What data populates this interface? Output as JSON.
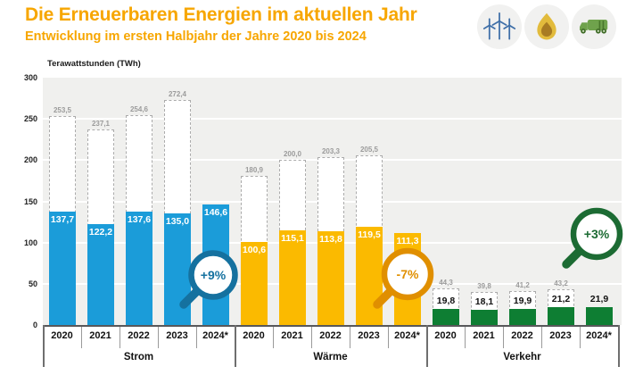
{
  "header": {
    "title": "Die Erneuerbaren Energien im aktuellen Jahr",
    "subtitle": "Entwicklung im ersten Halbjahr der Jahre 2020 bis 2024",
    "title_color": "#F7A600",
    "icons": [
      "wind-turbines",
      "flame",
      "truck"
    ]
  },
  "colors": {
    "plot_background": "#F0F0EE",
    "gridline": "#FFFFFF",
    "dashed_outline": "#ABABAB",
    "dashed_label": "#9B9B9B",
    "axis_line": "#58585A"
  },
  "chart_data": {
    "type": "bar",
    "title": "Die Erneuerbaren Energien im aktuellen Jahr",
    "subtitle": "Entwicklung im ersten Halbjahr der Jahre 2020 bis 2024",
    "ylabel": "Terawattstunden (TWh)",
    "ylim": [
      0,
      300
    ],
    "yticks": [
      0,
      50,
      100,
      150,
      200,
      250,
      300
    ],
    "grid": true,
    "legend_position": "none",
    "decimal_separator": ",",
    "categories": [
      "2020",
      "2021",
      "2022",
      "2023",
      "2024*"
    ],
    "groups": [
      {
        "label": "Strom",
        "color": "#1B9CD9",
        "value_label_placement": "inside",
        "solid_values": [
          137.7,
          122.2,
          137.6,
          135.0,
          146.6
        ],
        "dashed_values": [
          253.5,
          237.1,
          254.6,
          272.4,
          null
        ],
        "badge_text": "+9%",
        "badge_color": "#15719F"
      },
      {
        "label": "Wärme",
        "color": "#FBBA00",
        "value_label_placement": "inside",
        "solid_values": [
          100.6,
          115.1,
          113.8,
          119.5,
          111.3
        ],
        "dashed_values": [
          180.9,
          200.0,
          203.3,
          205.5,
          null
        ],
        "badge_text": "-7%",
        "badge_color": "#E08F00"
      },
      {
        "label": "Verkehr",
        "color": "#0E7E33",
        "value_label_placement": "above",
        "solid_values": [
          19.8,
          18.1,
          19.9,
          21.2,
          21.9
        ],
        "dashed_values": [
          44.3,
          39.8,
          41.2,
          43.2,
          null
        ],
        "badge_text": "+3%",
        "badge_color": "#1C6B33"
      }
    ]
  }
}
